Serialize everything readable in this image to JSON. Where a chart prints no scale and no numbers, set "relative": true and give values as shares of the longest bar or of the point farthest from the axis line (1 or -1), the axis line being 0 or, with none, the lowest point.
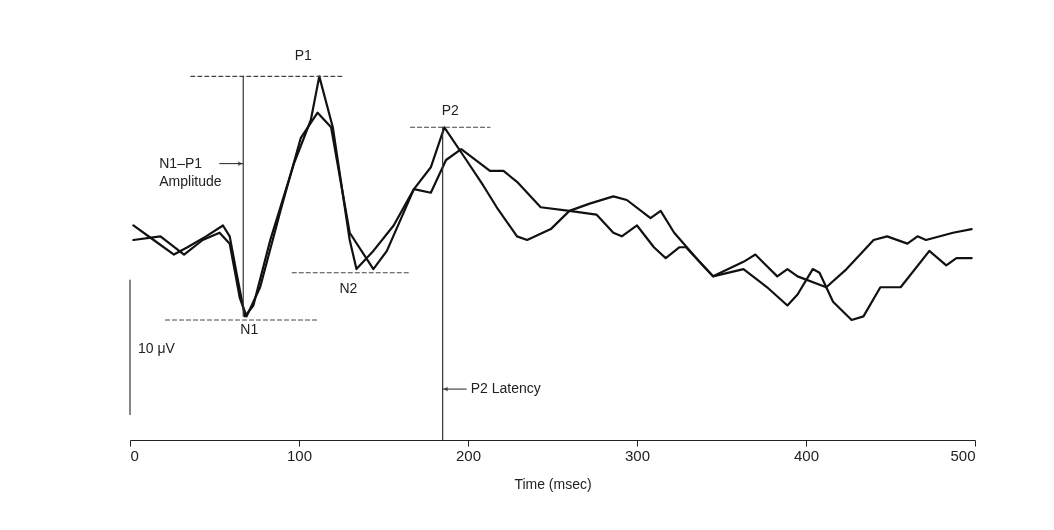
{
  "chart_data": {
    "type": "line",
    "relative": true,
    "xlabel": "Time (msec)",
    "xlim": [
      0,
      500
    ],
    "xticks": [
      0,
      100,
      200,
      300,
      400,
      500
    ],
    "series": [
      {
        "color": "#111111",
        "line_style": "solid",
        "x": [
          2,
          14,
          26,
          34,
          45,
          55,
          59,
          63,
          68,
          73,
          83,
          97,
          107,
          112,
          120,
          130,
          134,
          144,
          156,
          168,
          178,
          186,
          199,
          209,
          217,
          229,
          235,
          249,
          260,
          276,
          286,
          291,
          300,
          310,
          317,
          325,
          329,
          345,
          363,
          377,
          389,
          395,
          404,
          408,
          416,
          427,
          434,
          444,
          456,
          473,
          483,
          489,
          498
        ],
        "values": [
          0.59,
          0.55,
          0.51,
          0.53,
          0.56,
          0.59,
          0.56,
          0.46,
          0.34,
          0.37,
          0.55,
          0.76,
          0.88,
          1.0,
          0.86,
          0.55,
          0.47,
          0.52,
          0.59,
          0.69,
          0.75,
          0.86,
          0.77,
          0.7,
          0.64,
          0.56,
          0.55,
          0.58,
          0.63,
          0.62,
          0.57,
          0.56,
          0.59,
          0.53,
          0.5,
          0.53,
          0.53,
          0.45,
          0.47,
          0.42,
          0.37,
          0.4,
          0.47,
          0.46,
          0.38,
          0.33,
          0.34,
          0.42,
          0.42,
          0.52,
          0.48,
          0.5,
          0.5
        ]
      },
      {
        "color": "#111111",
        "line_style": "solid",
        "x": [
          2,
          18,
          32,
          43,
          53,
          59,
          65,
          69,
          77,
          89,
          101,
          111,
          119,
          130,
          144,
          152,
          168,
          178,
          187,
          196,
          213,
          221,
          229,
          243,
          260,
          272,
          286,
          294,
          308,
          314,
          322,
          337,
          345,
          363,
          370,
          383,
          389,
          395,
          412,
          424,
          440,
          448,
          460,
          466,
          471,
          487,
          498
        ],
        "values": [
          0.55,
          0.56,
          0.51,
          0.55,
          0.57,
          0.54,
          0.39,
          0.34,
          0.42,
          0.63,
          0.83,
          0.9,
          0.86,
          0.57,
          0.47,
          0.52,
          0.69,
          0.68,
          0.77,
          0.8,
          0.74,
          0.74,
          0.71,
          0.64,
          0.63,
          0.65,
          0.67,
          0.66,
          0.61,
          0.63,
          0.57,
          0.49,
          0.45,
          0.49,
          0.51,
          0.45,
          0.47,
          0.45,
          0.42,
          0.47,
          0.55,
          0.56,
          0.54,
          0.56,
          0.55,
          0.57,
          0.58
        ]
      },
      {
        "color": "#444444",
        "line_style": "dashed",
        "x": [
          36,
          127
        ],
        "values": [
          1.0,
          1.0
        ]
      },
      {
        "color": "#444444",
        "line_style": "dashed",
        "x": [
          166,
          213
        ],
        "values": [
          0.86,
          0.86
        ]
      },
      {
        "color": "#444444",
        "line_style": "dashed",
        "x": [
          21,
          112
        ],
        "values": [
          0.33,
          0.33
        ]
      },
      {
        "color": "#444444",
        "line_style": "dashed",
        "x": [
          96,
          166
        ],
        "values": [
          0.46,
          0.46
        ]
      },
      {
        "color": "#333333",
        "line_style": "solid",
        "x": [
          67,
          67
        ],
        "values": [
          0.34,
          1.0
        ]
      },
      {
        "color": "#333333",
        "line_style": "solid",
        "x": [
          185,
          185
        ],
        "values": [
          0,
          0.86
        ]
      },
      {
        "color": "#333333",
        "line_style": "solid",
        "x": [
          0,
          0
        ],
        "values": [
          0.07,
          0.44
        ]
      }
    ],
    "annotations": [
      {
        "text": "P1",
        "x": 112,
        "y": 1.0
      },
      {
        "text": "P2",
        "x": 186,
        "y": 0.86
      },
      {
        "text": "N1",
        "x": 67,
        "y": 0.34
      },
      {
        "text": "N2",
        "x": 134,
        "y": 0.47
      },
      {
        "text": "N1–P1 Amplitude",
        "x": 67,
        "y": 0.76
      },
      {
        "text": "P2 Latency",
        "x": 185,
        "y": 0.14
      },
      {
        "text": "10 μV",
        "x": 0,
        "y": 0.25
      }
    ]
  }
}
